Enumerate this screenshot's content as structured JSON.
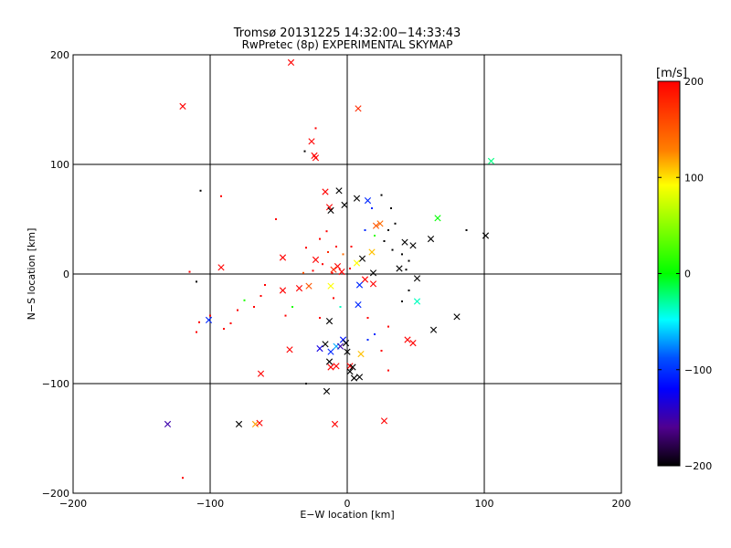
{
  "chart_data": {
    "type": "scatter",
    "title_line1": "Tromsø 20131225 14:32:00−14:33:43",
    "title_line2": "RwPretec (8p) EXPERIMENTAL SKYMAP",
    "xlabel": "E−W location [km]",
    "ylabel": "N−S location [km]",
    "xlim": [
      -200,
      200
    ],
    "ylim": [
      -200,
      200
    ],
    "xticks": [
      -200,
      -100,
      0,
      100,
      200
    ],
    "yticks": [
      -200,
      -100,
      0,
      100,
      200
    ],
    "xtick_labels": [
      "−200",
      "−100",
      "0",
      "100",
      "200"
    ],
    "ytick_labels": [
      "−200",
      "−100",
      "0",
      "100",
      "200"
    ],
    "grid": [
      -100,
      0,
      100
    ],
    "colorbar": {
      "label": "[m/s]",
      "range": [
        -200,
        200
      ],
      "ticks": [
        200,
        100,
        0,
        -100,
        -200
      ],
      "tick_labels": [
        "200",
        "100",
        "0",
        "−100",
        "−200"
      ]
    },
    "points": [
      {
        "x": -41,
        "y": 193,
        "v": 200,
        "m": "x"
      },
      {
        "x": -120,
        "y": 153,
        "v": 200,
        "m": "x"
      },
      {
        "x": 8,
        "y": 151,
        "v": 180,
        "m": "x"
      },
      {
        "x": 105,
        "y": 103,
        "v": -20,
        "m": "x"
      },
      {
        "x": -26,
        "y": 121,
        "v": 200,
        "m": "x"
      },
      {
        "x": -24,
        "y": 108,
        "v": 200,
        "m": "x"
      },
      {
        "x": -23,
        "y": 106,
        "v": 200,
        "m": "x"
      },
      {
        "x": -16,
        "y": 75,
        "v": 200,
        "m": "x"
      },
      {
        "x": -6,
        "y": 76,
        "v": -200,
        "m": "x"
      },
      {
        "x": 7,
        "y": 69,
        "v": -200,
        "m": "x"
      },
      {
        "x": -2,
        "y": 63,
        "v": -200,
        "m": "x"
      },
      {
        "x": -13,
        "y": 61,
        "v": 200,
        "m": "x"
      },
      {
        "x": -12,
        "y": 58,
        "v": -200,
        "m": "x"
      },
      {
        "x": 15,
        "y": 67,
        "v": -100,
        "m": "x"
      },
      {
        "x": 24,
        "y": 46,
        "v": 150,
        "m": "x"
      },
      {
        "x": 21,
        "y": 44,
        "v": 160,
        "m": "x"
      },
      {
        "x": 66,
        "y": 51,
        "v": 0,
        "m": "x"
      },
      {
        "x": 101,
        "y": 35,
        "v": -200,
        "m": "x"
      },
      {
        "x": 61,
        "y": 32,
        "v": -200,
        "m": "x"
      },
      {
        "x": 48,
        "y": 26,
        "v": -200,
        "m": "x"
      },
      {
        "x": 42,
        "y": 29,
        "v": -200,
        "m": "x"
      },
      {
        "x": 18,
        "y": 20,
        "v": 120,
        "m": "x"
      },
      {
        "x": 11,
        "y": 14,
        "v": -200,
        "m": "x"
      },
      {
        "x": 7,
        "y": 10,
        "v": 100,
        "m": "x"
      },
      {
        "x": 38,
        "y": 5,
        "v": -200,
        "m": "x"
      },
      {
        "x": 19,
        "y": 1,
        "v": -200,
        "m": "x"
      },
      {
        "x": 51,
        "y": -4,
        "v": -200,
        "m": "x"
      },
      {
        "x": -7,
        "y": 7,
        "v": 200,
        "m": "x"
      },
      {
        "x": -10,
        "y": 4,
        "v": 180,
        "m": "x"
      },
      {
        "x": -4,
        "y": 2,
        "v": 200,
        "m": "x"
      },
      {
        "x": -23,
        "y": 13,
        "v": 200,
        "m": "x"
      },
      {
        "x": -47,
        "y": 15,
        "v": 200,
        "m": "x"
      },
      {
        "x": -92,
        "y": 6,
        "v": 200,
        "m": "x"
      },
      {
        "x": -28,
        "y": -11,
        "v": 160,
        "m": "x"
      },
      {
        "x": -35,
        "y": -13,
        "v": 200,
        "m": "x"
      },
      {
        "x": -47,
        "y": -15,
        "v": 200,
        "m": "x"
      },
      {
        "x": 13,
        "y": -5,
        "v": 200,
        "m": "x"
      },
      {
        "x": 9,
        "y": -10,
        "v": -100,
        "m": "x"
      },
      {
        "x": 19,
        "y": -9,
        "v": 200,
        "m": "x"
      },
      {
        "x": -12,
        "y": -11,
        "v": 100,
        "m": "x"
      },
      {
        "x": 51,
        "y": -25,
        "v": -30,
        "m": "x"
      },
      {
        "x": 63,
        "y": -51,
        "v": -200,
        "m": "x"
      },
      {
        "x": 80,
        "y": -39,
        "v": -200,
        "m": "x"
      },
      {
        "x": 8,
        "y": -28,
        "v": -100,
        "m": "x"
      },
      {
        "x": -101,
        "y": -42,
        "v": -100,
        "m": "x"
      },
      {
        "x": -13,
        "y": -43,
        "v": -200,
        "m": "x"
      },
      {
        "x": -16,
        "y": -64,
        "v": -200,
        "m": "x"
      },
      {
        "x": -20,
        "y": -68,
        "v": -130,
        "m": "x"
      },
      {
        "x": -12,
        "y": -71,
        "v": -100,
        "m": "x"
      },
      {
        "x": -8,
        "y": -66,
        "v": -60,
        "m": "x"
      },
      {
        "x": -3,
        "y": -60,
        "v": -110,
        "m": "x"
      },
      {
        "x": -1,
        "y": -63,
        "v": -200,
        "m": "x"
      },
      {
        "x": 0,
        "y": -71,
        "v": -200,
        "m": "x"
      },
      {
        "x": -5,
        "y": -66,
        "v": -150,
        "m": "x"
      },
      {
        "x": 10,
        "y": -73,
        "v": 120,
        "m": "x"
      },
      {
        "x": 44,
        "y": -60,
        "v": 200,
        "m": "x"
      },
      {
        "x": 48,
        "y": -63,
        "v": 200,
        "m": "x"
      },
      {
        "x": -42,
        "y": -69,
        "v": 200,
        "m": "x"
      },
      {
        "x": -13,
        "y": -80,
        "v": -200,
        "m": "x"
      },
      {
        "x": -8,
        "y": -84,
        "v": 200,
        "m": "x"
      },
      {
        "x": -12,
        "y": -85,
        "v": 200,
        "m": "x"
      },
      {
        "x": 2,
        "y": -84,
        "v": 200,
        "m": "x"
      },
      {
        "x": 4,
        "y": -85,
        "v": -200,
        "m": "x"
      },
      {
        "x": 2,
        "y": -89,
        "v": -200,
        "m": "x"
      },
      {
        "x": 5,
        "y": -95,
        "v": -200,
        "m": "x"
      },
      {
        "x": 9,
        "y": -94,
        "v": -200,
        "m": "x"
      },
      {
        "x": -63,
        "y": -91,
        "v": 200,
        "m": "x"
      },
      {
        "x": -15,
        "y": -107,
        "v": -200,
        "m": "x"
      },
      {
        "x": -79,
        "y": -137,
        "v": -200,
        "m": "x"
      },
      {
        "x": -67,
        "y": -137,
        "v": 130,
        "m": "x"
      },
      {
        "x": -64,
        "y": -136,
        "v": 200,
        "m": "x"
      },
      {
        "x": -131,
        "y": -137,
        "v": -150,
        "m": "x"
      },
      {
        "x": -9,
        "y": -137,
        "v": 200,
        "m": "x"
      },
      {
        "x": 27,
        "y": -134,
        "v": 200,
        "m": "x"
      },
      {
        "x": -23,
        "y": 133,
        "v": 200,
        "m": "d"
      },
      {
        "x": -31,
        "y": 112,
        "v": -200,
        "m": "d"
      },
      {
        "x": -107,
        "y": 76,
        "v": -200,
        "m": "d"
      },
      {
        "x": -92,
        "y": 71,
        "v": 200,
        "m": "d"
      },
      {
        "x": -52,
        "y": 50,
        "v": 200,
        "m": "d"
      },
      {
        "x": 25,
        "y": 72,
        "v": -200,
        "m": "d"
      },
      {
        "x": 32,
        "y": 60,
        "v": -200,
        "m": "d"
      },
      {
        "x": 35,
        "y": 46,
        "v": -200,
        "m": "d"
      },
      {
        "x": 30,
        "y": 40,
        "v": -200,
        "m": "d"
      },
      {
        "x": 27,
        "y": 30,
        "v": -200,
        "m": "d"
      },
      {
        "x": 33,
        "y": 22,
        "v": -200,
        "m": "d"
      },
      {
        "x": 40,
        "y": 18,
        "v": -200,
        "m": "d"
      },
      {
        "x": 45,
        "y": 12,
        "v": -200,
        "m": "d"
      },
      {
        "x": 87,
        "y": 40,
        "v": -200,
        "m": "d"
      },
      {
        "x": 43,
        "y": 4,
        "v": -200,
        "m": "d"
      },
      {
        "x": 13,
        "y": 40,
        "v": -100,
        "m": "d"
      },
      {
        "x": 18,
        "y": 60,
        "v": -100,
        "m": "d"
      },
      {
        "x": 20,
        "y": 35,
        "v": 20,
        "m": "d"
      },
      {
        "x": -15,
        "y": 39,
        "v": 200,
        "m": "d"
      },
      {
        "x": -20,
        "y": 32,
        "v": 200,
        "m": "d"
      },
      {
        "x": -8,
        "y": 25,
        "v": 200,
        "m": "d"
      },
      {
        "x": -30,
        "y": 24,
        "v": 200,
        "m": "d"
      },
      {
        "x": -14,
        "y": 20,
        "v": 180,
        "m": "d"
      },
      {
        "x": -3,
        "y": 18,
        "v": 150,
        "m": "d"
      },
      {
        "x": 3,
        "y": 25,
        "v": 200,
        "m": "d"
      },
      {
        "x": -18,
        "y": 9,
        "v": 200,
        "m": "d"
      },
      {
        "x": -25,
        "y": 3,
        "v": 200,
        "m": "d"
      },
      {
        "x": -32,
        "y": 1,
        "v": 160,
        "m": "d"
      },
      {
        "x": -11,
        "y": 1,
        "v": 200,
        "m": "d"
      },
      {
        "x": 2,
        "y": 5,
        "v": 200,
        "m": "d"
      },
      {
        "x": -115,
        "y": 2,
        "v": 200,
        "m": "d"
      },
      {
        "x": -110,
        "y": -7,
        "v": -200,
        "m": "d"
      },
      {
        "x": -60,
        "y": -10,
        "v": 200,
        "m": "d"
      },
      {
        "x": -63,
        "y": -20,
        "v": 200,
        "m": "d"
      },
      {
        "x": -68,
        "y": -30,
        "v": 200,
        "m": "d"
      },
      {
        "x": -80,
        "y": -33,
        "v": 200,
        "m": "d"
      },
      {
        "x": -85,
        "y": -45,
        "v": 200,
        "m": "d"
      },
      {
        "x": -90,
        "y": -50,
        "v": 200,
        "m": "d"
      },
      {
        "x": -100,
        "y": -38,
        "v": 200,
        "m": "d"
      },
      {
        "x": -108,
        "y": -44,
        "v": 200,
        "m": "d"
      },
      {
        "x": -110,
        "y": -53,
        "v": 200,
        "m": "d"
      },
      {
        "x": -75,
        "y": -24,
        "v": 10,
        "m": "d"
      },
      {
        "x": -40,
        "y": -30,
        "v": 10,
        "m": "d"
      },
      {
        "x": -45,
        "y": -38,
        "v": 200,
        "m": "d"
      },
      {
        "x": -20,
        "y": -40,
        "v": 200,
        "m": "d"
      },
      {
        "x": -10,
        "y": -22,
        "v": 200,
        "m": "d"
      },
      {
        "x": -5,
        "y": -30,
        "v": -30,
        "m": "d"
      },
      {
        "x": 15,
        "y": -40,
        "v": 200,
        "m": "d"
      },
      {
        "x": 30,
        "y": -48,
        "v": 200,
        "m": "d"
      },
      {
        "x": 40,
        "y": -25,
        "v": -200,
        "m": "d"
      },
      {
        "x": 45,
        "y": -15,
        "v": -200,
        "m": "d"
      },
      {
        "x": 20,
        "y": -55,
        "v": -100,
        "m": "d"
      },
      {
        "x": 15,
        "y": -60,
        "v": -100,
        "m": "d"
      },
      {
        "x": 25,
        "y": -70,
        "v": 200,
        "m": "d"
      },
      {
        "x": -30,
        "y": -100,
        "v": -200,
        "m": "d"
      },
      {
        "x": -120,
        "y": -186,
        "v": 200,
        "m": "d"
      },
      {
        "x": 30,
        "y": -88,
        "v": 200,
        "m": "d"
      }
    ]
  }
}
